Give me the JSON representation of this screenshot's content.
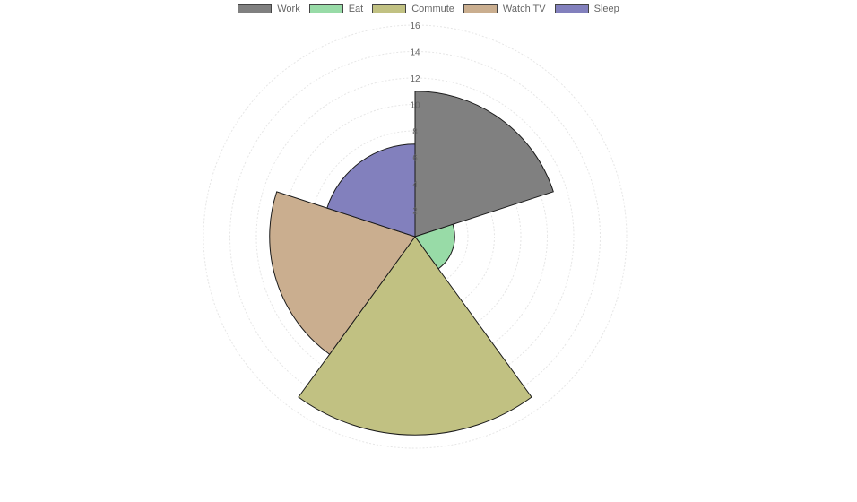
{
  "chart_data": {
    "type": "polarArea",
    "title": "",
    "categories": [
      "Work",
      "Eat",
      "Commute",
      "Watch TV",
      "Sleep"
    ],
    "values": [
      11,
      3,
      15,
      11,
      7
    ],
    "colors": [
      "#808080",
      "#98dba7",
      "#c1c182",
      "#caae8f",
      "#8280bd"
    ],
    "r_range": [
      0,
      16
    ],
    "r_ticks": [
      "2",
      "4",
      "6",
      "8",
      "10",
      "12",
      "14",
      "16"
    ],
    "grid": true,
    "legend_position": "top"
  }
}
